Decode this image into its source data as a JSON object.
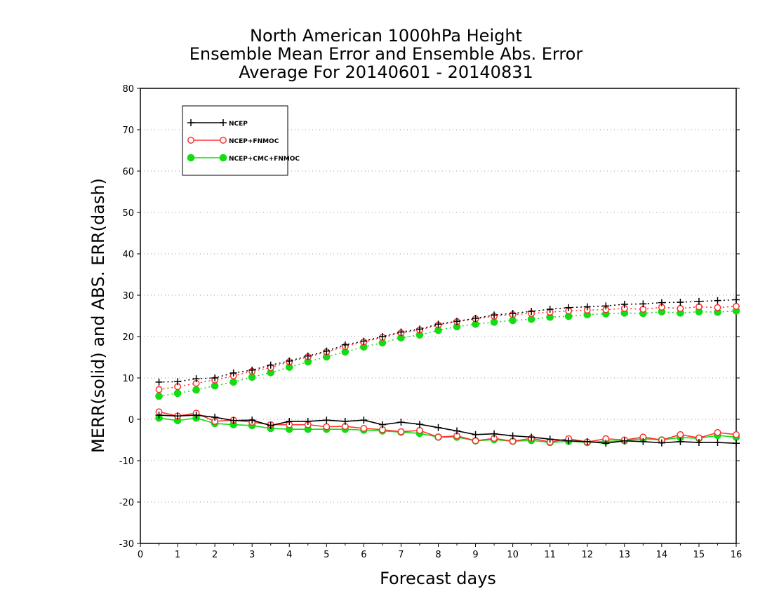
{
  "chart_data": {
    "type": "line",
    "title_lines": [
      "North American 1000hPa Height",
      "Ensemble Mean Error and Ensemble Abs. Error",
      "Average For 20140601 - 20140831"
    ],
    "xlabel": "Forecast days",
    "ylabel": "MERR(solid) and ABS. ERR(dash)",
    "xlim": [
      0,
      16
    ],
    "ylim": [
      -30,
      80
    ],
    "x_ticks": [
      "0",
      "1",
      "2",
      "3",
      "4",
      "5",
      "6",
      "7",
      "8",
      "9",
      "10",
      "11",
      "12",
      "13",
      "14",
      "15",
      "16"
    ],
    "y_ticks": [
      "80",
      "70",
      "60",
      "50",
      "40",
      "30",
      "20",
      "10",
      "0",
      "-10",
      "-20",
      "-30"
    ],
    "y_tick_values": [
      80,
      70,
      60,
      50,
      40,
      30,
      20,
      10,
      0,
      -10,
      -20,
      -30
    ],
    "grid": "horizontal dotted",
    "legend_position": "top-left",
    "x": [
      0.5,
      1,
      1.5,
      2,
      2.5,
      3,
      3.5,
      4,
      4.5,
      5,
      5.5,
      6,
      6.5,
      7,
      7.5,
      8,
      8.5,
      9,
      9.5,
      10,
      10.5,
      11,
      11.5,
      12,
      12.5,
      13,
      13.5,
      14,
      14.5,
      15,
      15.5,
      16
    ],
    "series": [
      {
        "name": "NCEP",
        "color": "#000000",
        "marker": "plus",
        "merr": [
          1.0,
          0.8,
          1.0,
          0.5,
          -0.3,
          -0.2,
          -1.5,
          -0.5,
          -0.5,
          -0.2,
          -0.5,
          -0.2,
          -1.3,
          -0.7,
          -1.2,
          -2.0,
          -2.8,
          -3.7,
          -3.5,
          -4.0,
          -4.3,
          -4.8,
          -5.2,
          -5.4,
          -5.8,
          -5.2,
          -5.4,
          -5.7,
          -5.4,
          -5.6,
          -5.6,
          -5.8
        ],
        "abs_err": [
          9.0,
          9.1,
          9.8,
          10.0,
          11.2,
          11.9,
          13.1,
          14.1,
          15.3,
          16.5,
          18.0,
          18.9,
          20.0,
          21.1,
          21.8,
          23.0,
          23.7,
          24.4,
          25.2,
          25.6,
          26.1,
          26.6,
          27.0,
          27.2,
          27.4,
          27.8,
          27.9,
          28.2,
          28.3,
          28.5,
          28.7,
          28.9
        ]
      },
      {
        "name": "NCEP+FNMOC",
        "color": "#ff3030",
        "marker": "open-circle",
        "merr": [
          1.8,
          0.8,
          1.5,
          -0.5,
          -0.2,
          -0.7,
          -1.3,
          -1.3,
          -1.3,
          -1.8,
          -1.7,
          -2.2,
          -2.5,
          -3.0,
          -2.7,
          -4.3,
          -4.0,
          -5.2,
          -4.6,
          -5.3,
          -4.6,
          -5.5,
          -4.7,
          -5.5,
          -4.7,
          -5.0,
          -4.3,
          -5.0,
          -3.7,
          -4.5,
          -3.2,
          -3.7
        ],
        "abs_err": [
          7.2,
          7.9,
          8.7,
          9.5,
          10.5,
          11.6,
          12.5,
          13.9,
          15.1,
          16.3,
          17.6,
          18.7,
          19.8,
          20.9,
          21.6,
          22.8,
          23.6,
          24.3,
          24.9,
          25.3,
          25.6,
          25.9,
          26.2,
          26.4,
          26.5,
          26.8,
          26.6,
          27.1,
          26.8,
          27.2,
          27.0,
          27.3
        ]
      },
      {
        "name": "NCEP+CMC+FNMOC",
        "color": "#11dd11",
        "marker": "filled-circle",
        "merr": [
          0.3,
          -0.3,
          0.3,
          -1.0,
          -1.3,
          -1.5,
          -2.2,
          -2.4,
          -2.4,
          -2.4,
          -2.4,
          -2.6,
          -2.8,
          -3.1,
          -3.4,
          -4.3,
          -4.3,
          -5.2,
          -4.9,
          -5.3,
          -5.1,
          -5.6,
          -5.3,
          -5.6,
          -5.3,
          -5.2,
          -4.7,
          -5.0,
          -4.4,
          -4.6,
          -3.9,
          -4.3
        ],
        "abs_err": [
          5.6,
          6.3,
          7.1,
          8.1,
          9.0,
          10.2,
          11.3,
          12.6,
          13.9,
          15.1,
          16.3,
          17.5,
          18.5,
          19.7,
          20.4,
          21.5,
          22.4,
          23.0,
          23.5,
          23.9,
          24.2,
          24.7,
          24.9,
          25.3,
          25.5,
          25.7,
          25.6,
          26.0,
          25.7,
          26.0,
          25.9,
          26.2
        ]
      }
    ]
  }
}
